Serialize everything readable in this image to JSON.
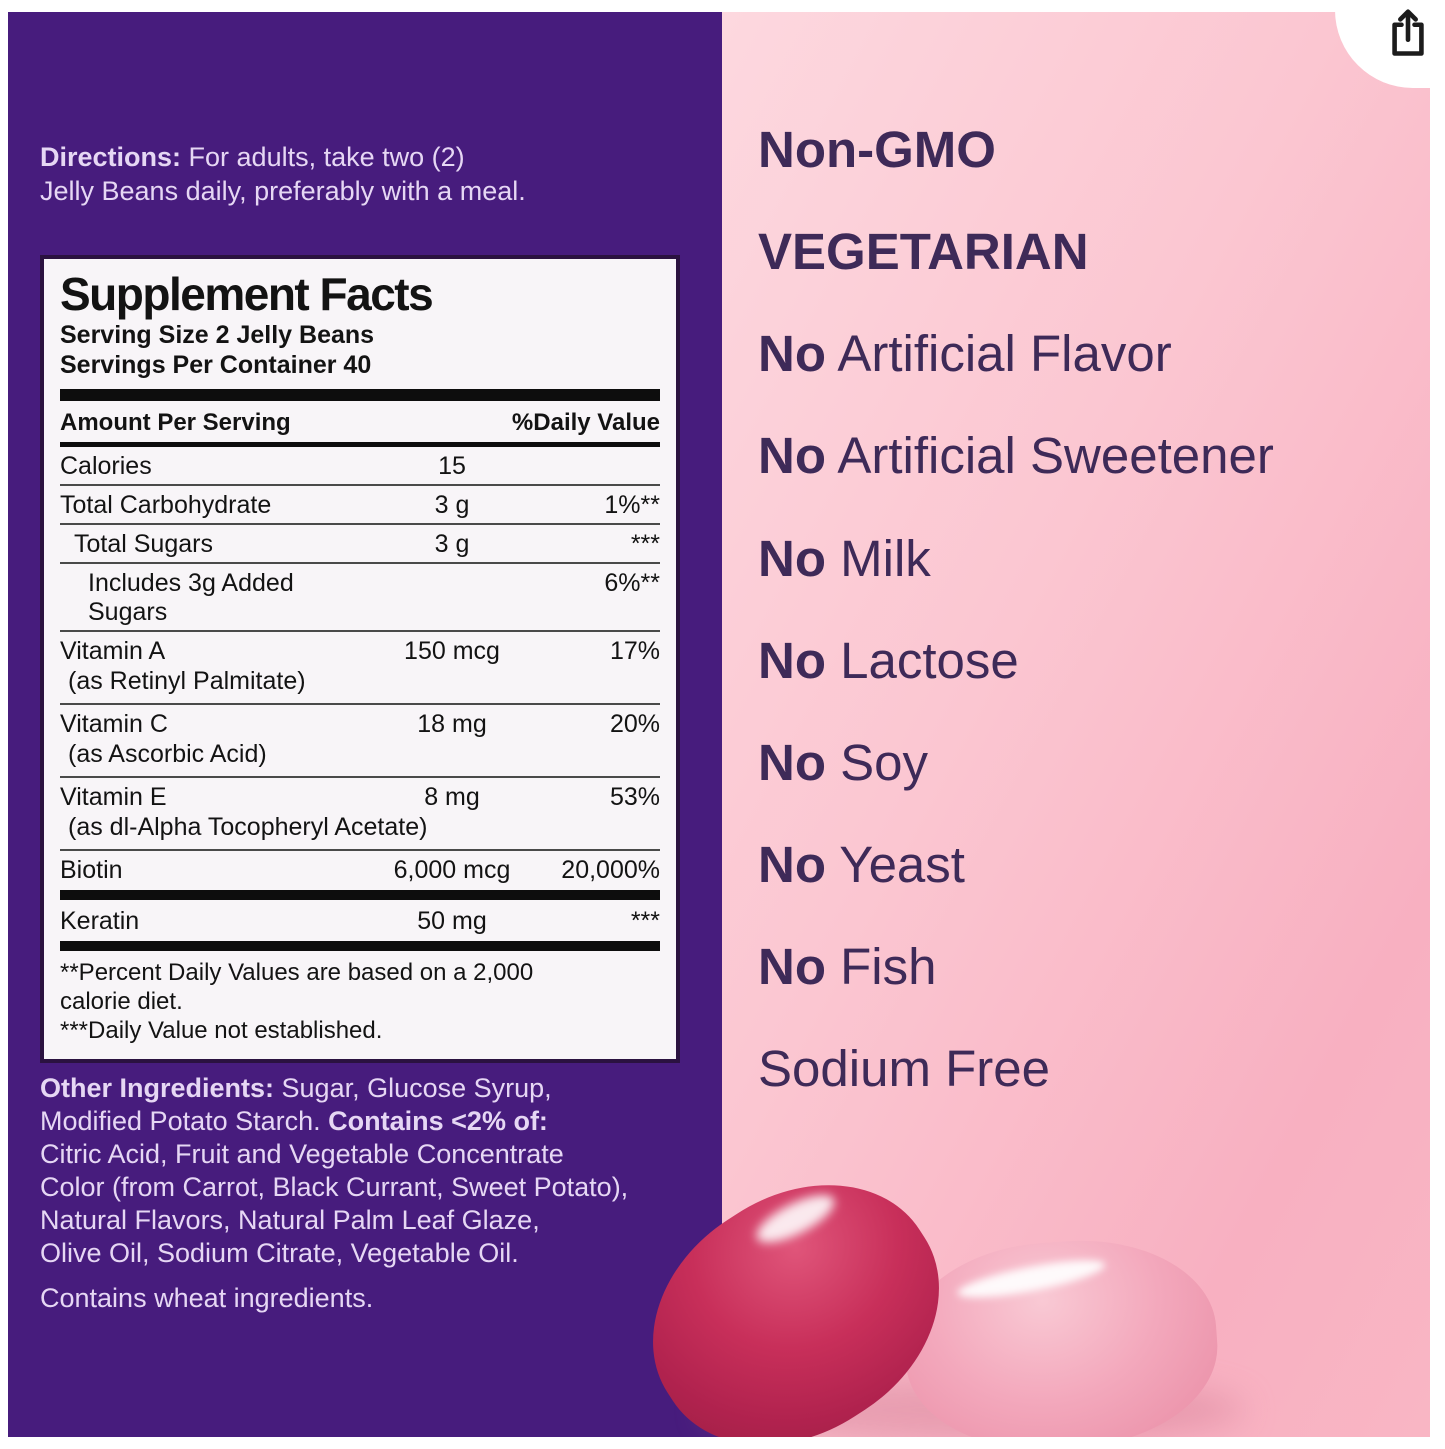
{
  "colors": {
    "purple": "#471c7d",
    "lavender": "#e6d7f4",
    "pink-light": "#fdd8df",
    "pink-deep": "#f8b0c1",
    "claim": "#3e2a58",
    "bean-red": "#c82f5a",
    "bean-pink": "#f3a8bc"
  },
  "share_button": {
    "icon": "share-icon"
  },
  "left_panel": {
    "directions_lines": [
      {
        "segs": [
          {
            "b": true,
            "t": "Directions:"
          },
          {
            "b": false,
            "t": " For adults, take two (2)"
          }
        ]
      },
      {
        "segs": [
          {
            "b": false,
            "t": "Jelly Beans daily, preferably with a meal."
          }
        ]
      }
    ],
    "supplement_facts": {
      "title": "Supplement Facts",
      "serving_size": "Serving Size 2 Jelly Beans",
      "servings_per_container": "Servings Per Container 40",
      "col_amount": "Amount Per Serving",
      "col_dv": "%Daily Value",
      "rows": [
        {
          "name": "Calories",
          "amount": "15",
          "dv": ""
        },
        {
          "name": "Total Carbohydrate",
          "amount": "3 g",
          "dv": "1%**"
        },
        {
          "name": "Total Sugars",
          "amount": "3 g",
          "dv": "***",
          "indent": 1
        },
        {
          "name": "Includes 3g Added Sugars",
          "amount": "",
          "dv": "6%**",
          "indent": 2
        },
        {
          "name": "Vitamin A",
          "sub": "(as Retinyl Palmitate)",
          "amount": "150 mcg",
          "dv": "17%"
        },
        {
          "name": "Vitamin C",
          "sub": "(as Ascorbic Acid)",
          "amount": "18 mg",
          "dv": "20%"
        },
        {
          "name": "Vitamin E",
          "sub": "(as dl-Alpha Tocopheryl Acetate)",
          "amount": "8 mg",
          "dv": "53%"
        },
        {
          "name": "Biotin",
          "amount": "6,000 mcg",
          "dv": "20,000%",
          "bar_after": true
        },
        {
          "name": "Keratin",
          "amount": "50 mg",
          "dv": "***",
          "bar_after": true
        }
      ],
      "footnote_lines": [
        "**Percent Daily Values are based on a 2,000",
        "calorie diet.",
        "***Daily Value not established."
      ]
    },
    "other_ingredients_lines": [
      {
        "segs": [
          {
            "b": true,
            "t": "Other Ingredients:"
          },
          {
            "b": false,
            "t": " Sugar, Glucose Syrup,"
          }
        ]
      },
      {
        "segs": [
          {
            "b": false,
            "t": "Modified Potato Starch. "
          },
          {
            "b": true,
            "t": "Contains <2% of:"
          }
        ]
      },
      {
        "segs": [
          {
            "b": false,
            "t": "Citric Acid, Fruit and Vegetable Concentrate"
          }
        ]
      },
      {
        "segs": [
          {
            "b": false,
            "t": "Color (from Carrot, Black Currant, Sweet Potato),"
          }
        ]
      },
      {
        "segs": [
          {
            "b": false,
            "t": "Natural Flavors, Natural Palm Leaf Glaze,"
          }
        ]
      },
      {
        "segs": [
          {
            "b": false,
            "t": "Olive Oil, Sodium Citrate, Vegetable Oil."
          }
        ]
      },
      {
        "gap": true,
        "segs": [
          {
            "b": false,
            "t": "Contains wheat ingredients."
          }
        ]
      }
    ]
  },
  "right_panel": {
    "claims": [
      {
        "bold": "Non-GMO",
        "rest": ""
      },
      {
        "bold": "VEGETARIAN",
        "rest": ""
      },
      {
        "bold": "No",
        "rest": " Artificial Flavor"
      },
      {
        "bold": "No",
        "rest": " Artificial Sweetener"
      },
      {
        "bold": "No",
        "rest": " Milk"
      },
      {
        "bold": "No",
        "rest": " Lactose"
      },
      {
        "bold": "No",
        "rest": " Soy"
      },
      {
        "bold": "No",
        "rest": " Yeast"
      },
      {
        "bold": "No",
        "rest": " Fish"
      },
      {
        "bold": "",
        "rest": "Sodium Free"
      }
    ]
  }
}
